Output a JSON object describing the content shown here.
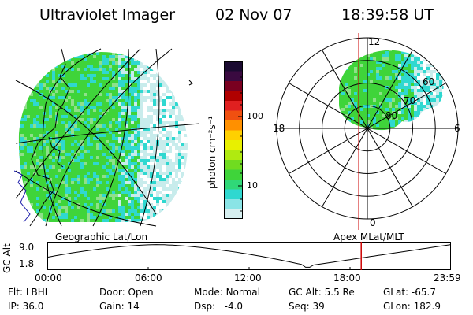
{
  "header": {
    "instrument": "Ultraviolet Imager",
    "date": "02 Nov 07",
    "time": "18:39:58 UT"
  },
  "left_map": {
    "caption": "Geographic Lat/Lon"
  },
  "right_map": {
    "caption": "Apex MLat/MLT",
    "mlt_labels": {
      "top": "12",
      "left": "18",
      "right": "6",
      "bottom": "0"
    },
    "lat_labels": [
      "60",
      "70",
      "80"
    ]
  },
  "colorbar": {
    "unit_label": "photon cm⁻²s⁻¹",
    "ticks": [
      "100",
      "10"
    ]
  },
  "timeline": {
    "y_axis_label": "GC Alt",
    "y_ticks": [
      "9.0",
      "1.8"
    ],
    "x_ticks": [
      "00:00",
      "06:00",
      "12:00",
      "18:00",
      "23:59"
    ],
    "current_time_hours": 18.666
  },
  "status": [
    {
      "key": "Flt:",
      "value": "LBHL"
    },
    {
      "key": "IP:",
      "value": "36.0"
    },
    {
      "key": "Door:",
      "value": "Open"
    },
    {
      "key": "Gain:",
      "value": "14"
    },
    {
      "key": "Mode:",
      "value": "Normal"
    },
    {
      "key": "Dsp:",
      "value": "-4.0"
    },
    {
      "key": "GC Alt:",
      "value": "5.5 Re"
    },
    {
      "key": "Seq:",
      "value": "39"
    },
    {
      "key": "GLat:",
      "value": "-65.7"
    },
    {
      "key": "GLon:",
      "value": "182.9"
    }
  ],
  "colors": {
    "green": "#3fd43a",
    "cyan": "#2fd8d0",
    "pale": "#c8ecec",
    "marker": "#cc0000"
  }
}
